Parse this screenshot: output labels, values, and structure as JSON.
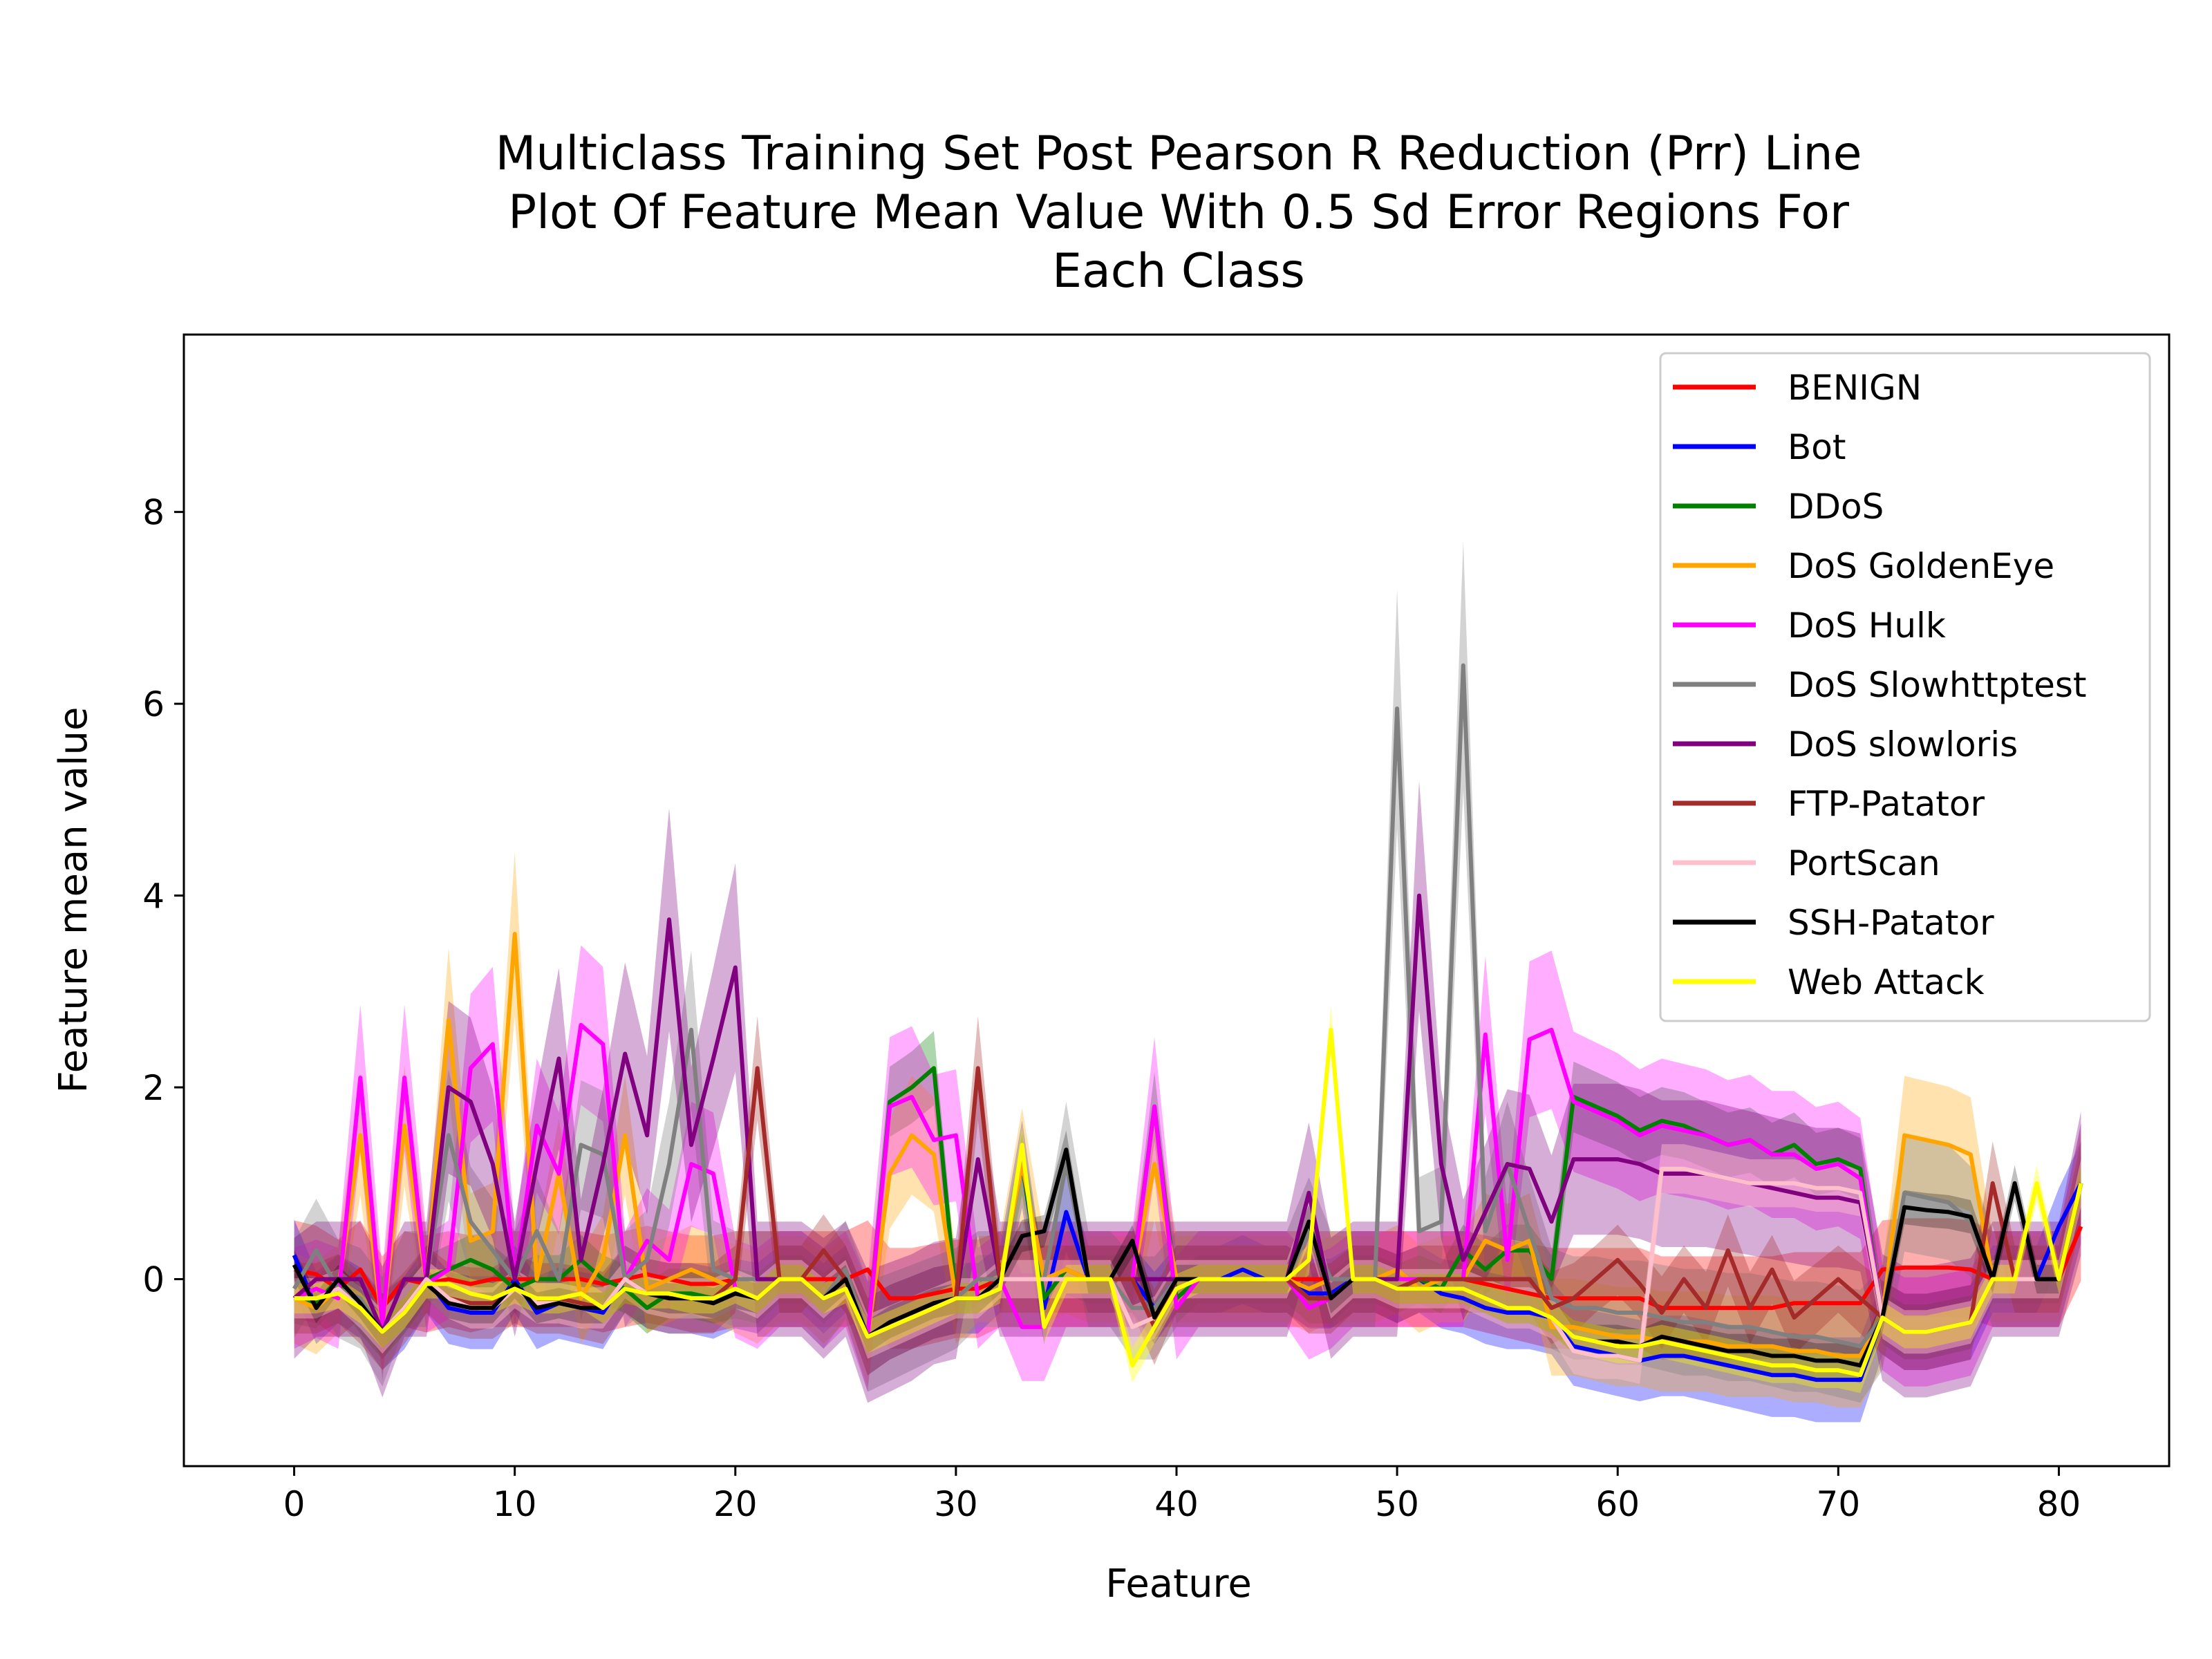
{
  "chart_data": {
    "type": "line",
    "title_lines": [
      "Multiclass Training Set Post Pearson R Reduction (Prr) Line",
      "Plot Of Feature Mean Value With 0.5 Sd Error Regions For",
      "Each Class"
    ],
    "xlabel": "Feature",
    "ylabel": "Feature mean value",
    "xlim": [
      -5,
      85
    ],
    "ylim": [
      -1.95,
      9.85
    ],
    "xticks": [
      0,
      10,
      20,
      30,
      40,
      50,
      60,
      70,
      80
    ],
    "yticks": [
      0,
      2,
      4,
      6,
      8
    ],
    "legend_position": "upper right",
    "grid": false,
    "x": [
      0,
      1,
      2,
      3,
      4,
      5,
      6,
      7,
      8,
      9,
      10,
      11,
      12,
      13,
      14,
      15,
      16,
      17,
      18,
      19,
      20,
      21,
      22,
      23,
      24,
      25,
      26,
      27,
      28,
      29,
      30,
      31,
      32,
      33,
      34,
      35,
      36,
      37,
      38,
      39,
      40,
      41,
      42,
      43,
      44,
      45,
      46,
      47,
      48,
      49,
      50,
      51,
      52,
      53,
      54,
      55,
      56,
      57,
      58,
      59,
      60,
      61,
      62,
      63,
      64,
      65,
      66,
      67,
      68,
      69,
      70,
      71,
      72,
      73,
      74,
      75,
      76,
      77,
      78,
      79,
      80,
      81
    ],
    "series": [
      {
        "name": "BENIGN",
        "color": "#ff0000",
        "band_color": "#ff0000",
        "band_opacity": 0.32,
        "values": [
          0.1,
          0.05,
          -0.1,
          0.1,
          -0.3,
          0.0,
          -0.05,
          0.0,
          -0.05,
          0.0,
          0.0,
          0.0,
          0.0,
          0.0,
          -0.05,
          0.0,
          0.05,
          0.0,
          -0.05,
          -0.05,
          0.0,
          0.0,
          0.0,
          0.0,
          0.0,
          0.0,
          0.1,
          -0.2,
          -0.2,
          -0.15,
          -0.1,
          -0.1,
          0.0,
          0.0,
          0.0,
          0.0,
          0.0,
          0.0,
          0.0,
          0.0,
          0.0,
          0.0,
          0.0,
          0.0,
          0.0,
          0.0,
          0.0,
          0.0,
          0.0,
          0.0,
          0.0,
          0.0,
          0.0,
          0.0,
          -0.05,
          -0.1,
          -0.15,
          -0.2,
          -0.2,
          -0.2,
          -0.2,
          -0.2,
          -0.3,
          -0.3,
          -0.3,
          -0.3,
          -0.3,
          -0.3,
          -0.25,
          -0.25,
          -0.25,
          -0.25,
          0.1,
          0.12,
          0.12,
          0.12,
          0.1,
          0.0,
          0.0,
          0.0,
          0.0,
          0.55
        ],
        "spread": 0.5
      },
      {
        "name": "Bot",
        "color": "#0000ff",
        "band_color": "#0000ff",
        "band_opacity": 0.32,
        "values": [
          0.25,
          -0.3,
          -0.1,
          -0.25,
          -0.55,
          -0.35,
          0.0,
          -0.3,
          -0.35,
          -0.35,
          0.0,
          -0.35,
          -0.25,
          -0.3,
          -0.35,
          0.0,
          -0.15,
          -0.2,
          -0.2,
          -0.25,
          -0.15,
          -0.2,
          0.0,
          0.0,
          -0.2,
          0.0,
          -0.6,
          -0.45,
          -0.35,
          -0.25,
          -0.2,
          -0.2,
          0.0,
          1.2,
          -0.3,
          0.7,
          0.0,
          0.0,
          0.0,
          -0.3,
          0.0,
          0.0,
          0.0,
          0.1,
          0.0,
          0.0,
          -0.15,
          -0.15,
          0.0,
          0.0,
          -0.1,
          0.0,
          -0.15,
          -0.2,
          -0.3,
          -0.35,
          -0.35,
          -0.4,
          -0.7,
          -0.75,
          -0.8,
          -0.85,
          -0.8,
          -0.8,
          -0.85,
          -0.9,
          -0.95,
          -1.0,
          -1.0,
          -1.05,
          -1.05,
          -1.05,
          -0.4,
          -0.55,
          -0.55,
          -0.5,
          -0.45,
          0.0,
          0.0,
          0.0,
          0.55,
          1.0
        ],
        "spread": 0.35
      },
      {
        "name": "DDoS",
        "color": "#008000",
        "band_color": "#008000",
        "band_opacity": 0.32,
        "values": [
          -0.2,
          -0.25,
          0.0,
          -0.3,
          -0.55,
          -0.3,
          0.0,
          0.1,
          0.2,
          0.1,
          -0.1,
          0.0,
          0.0,
          0.2,
          0.0,
          -0.1,
          -0.3,
          -0.15,
          -0.15,
          -0.2,
          -0.15,
          -0.2,
          0.0,
          0.0,
          -0.2,
          0.0,
          -0.6,
          1.85,
          2.0,
          2.2,
          -0.2,
          0.0,
          0.0,
          1.2,
          -0.2,
          0.1,
          0.0,
          0.0,
          0.0,
          1.8,
          -0.2,
          0.0,
          0.0,
          0.0,
          0.0,
          0.0,
          -0.2,
          -0.2,
          0.0,
          0.0,
          -0.1,
          0.0,
          -0.1,
          0.3,
          0.1,
          0.3,
          0.3,
          0.0,
          1.9,
          1.8,
          1.7,
          1.55,
          1.65,
          1.6,
          1.5,
          1.4,
          1.45,
          1.3,
          1.4,
          1.2,
          1.25,
          1.15,
          -0.4,
          -0.55,
          -0.55,
          -0.5,
          -0.45,
          0.0,
          0.0,
          0.0,
          0.0,
          1.0
        ],
        "spread": 0.25
      },
      {
        "name": "DoS GoldenEye",
        "color": "#ffa500",
        "band_color": "#ffa500",
        "band_opacity": 0.32,
        "values": [
          -0.2,
          -0.3,
          -0.1,
          1.5,
          -0.5,
          1.6,
          -0.05,
          2.7,
          0.4,
          0.5,
          3.6,
          0.0,
          1.1,
          -0.2,
          0.2,
          1.5,
          -0.1,
          0.0,
          0.1,
          0.0,
          -0.1,
          -0.2,
          0.0,
          0.0,
          -0.2,
          0.0,
          -0.6,
          1.1,
          1.5,
          1.3,
          -0.2,
          0.0,
          0.0,
          1.2,
          0.0,
          0.1,
          0.0,
          0.0,
          0.0,
          1.2,
          0.0,
          0.0,
          0.0,
          0.0,
          0.0,
          0.0,
          -0.1,
          0.0,
          0.0,
          0.0,
          0.1,
          -0.1,
          0.0,
          0.0,
          0.4,
          0.3,
          0.4,
          -0.5,
          -0.5,
          -0.55,
          -0.6,
          -0.6,
          -0.65,
          -0.65,
          -0.65,
          -0.7,
          -0.7,
          -0.7,
          -0.75,
          -0.75,
          -0.8,
          -0.8,
          -0.4,
          1.5,
          1.45,
          1.4,
          1.3,
          0.0,
          0.0,
          0.0,
          0.0,
          1.0
        ],
        "spread": 0.45
      },
      {
        "name": "DoS Hulk",
        "color": "#ff00ff",
        "band_color": "#ff00ff",
        "band_opacity": 0.32,
        "values": [
          -0.2,
          -0.1,
          -0.2,
          2.1,
          -0.5,
          2.1,
          -0.05,
          0.1,
          2.2,
          2.45,
          0.0,
          1.6,
          1.1,
          2.65,
          2.45,
          0.0,
          0.4,
          0.2,
          1.2,
          1.1,
          -0.1,
          -0.2,
          0.0,
          0.0,
          -0.2,
          0.0,
          -0.6,
          1.8,
          1.9,
          1.45,
          1.5,
          -0.2,
          0.0,
          -0.5,
          -0.5,
          0.0,
          0.0,
          0.0,
          0.0,
          1.8,
          -0.3,
          0.0,
          0.0,
          0.0,
          0.0,
          0.0,
          -0.3,
          -0.2,
          0.0,
          0.0,
          0.0,
          0.0,
          0.0,
          0.0,
          2.55,
          0.2,
          2.5,
          2.6,
          1.85,
          1.75,
          1.65,
          1.5,
          1.6,
          1.55,
          1.5,
          1.4,
          1.45,
          1.3,
          1.3,
          1.15,
          1.2,
          1.05,
          -0.4,
          -0.55,
          -0.55,
          -0.5,
          -0.45,
          0.0,
          0.0,
          0.0,
          0.0,
          1.0
        ],
        "spread": 0.5
      },
      {
        "name": "DoS Slowhttptest",
        "color": "#808080",
        "band_color": "#808080",
        "band_opacity": 0.35,
        "values": [
          -0.1,
          0.3,
          -0.1,
          -0.2,
          -0.55,
          0.0,
          0.0,
          1.5,
          0.6,
          0.3,
          0.0,
          0.5,
          0.0,
          1.4,
          1.3,
          0.0,
          0.2,
          1.2,
          2.6,
          0.1,
          0.0,
          0.0,
          0.0,
          0.0,
          -0.2,
          0.1,
          -0.6,
          -0.5,
          -0.4,
          -0.3,
          -0.2,
          0.0,
          0.0,
          0.0,
          0.0,
          1.2,
          0.0,
          0.0,
          -0.3,
          -0.3,
          0.0,
          0.0,
          0.0,
          0.0,
          0.0,
          0.0,
          0.5,
          0.0,
          0.0,
          0.0,
          5.95,
          0.5,
          0.6,
          6.4,
          0.5,
          1.2,
          0.5,
          -0.2,
          -0.3,
          -0.3,
          -0.35,
          -0.35,
          -0.4,
          -0.45,
          -0.45,
          -0.5,
          -0.5,
          -0.55,
          -0.6,
          -0.6,
          -0.65,
          -0.7,
          -0.4,
          0.9,
          0.85,
          0.8,
          0.6,
          0.0,
          0.0,
          0.0,
          0.0,
          1.0
        ],
        "spread": 0.5
      },
      {
        "name": "DoS slowloris",
        "color": "#800080",
        "band_color": "#800080",
        "band_opacity": 0.32,
        "values": [
          -0.2,
          0.0,
          0.0,
          0.0,
          -0.55,
          0.0,
          0.0,
          2.0,
          1.85,
          1.2,
          0.0,
          1.2,
          2.3,
          0.2,
          1.2,
          2.35,
          1.5,
          3.75,
          1.4,
          2.3,
          3.25,
          0.0,
          0.0,
          0.0,
          -0.2,
          0.0,
          -0.6,
          -0.5,
          -0.4,
          -0.25,
          -0.2,
          1.25,
          0.0,
          0.0,
          0.0,
          0.0,
          0.0,
          0.0,
          0.0,
          0.0,
          0.0,
          0.0,
          0.0,
          0.0,
          0.0,
          0.0,
          0.9,
          -0.2,
          0.0,
          0.0,
          0.0,
          4.0,
          1.2,
          0.2,
          0.7,
          1.2,
          1.15,
          0.6,
          1.25,
          1.25,
          1.25,
          1.2,
          1.1,
          1.1,
          1.1,
          1.05,
          1.0,
          0.95,
          0.9,
          0.85,
          0.85,
          0.8,
          -0.4,
          -0.55,
          -0.55,
          -0.5,
          -0.45,
          0.0,
          0.0,
          0.0,
          0.0,
          1.0
        ],
        "spread": 0.6
      },
      {
        "name": "FTP-Patator",
        "color": "#a52a2a",
        "band_color": "#a52a2a",
        "band_opacity": 0.32,
        "values": [
          -0.2,
          -0.2,
          -0.1,
          -0.3,
          -0.55,
          -0.3,
          0.0,
          -0.2,
          -0.25,
          -0.25,
          -0.1,
          -0.2,
          -0.2,
          -0.25,
          -0.3,
          0.0,
          -0.15,
          -0.2,
          -0.2,
          -0.2,
          0.0,
          2.2,
          0.0,
          0.0,
          0.3,
          0.0,
          -0.6,
          -0.45,
          -0.35,
          -0.25,
          -0.2,
          2.2,
          0.0,
          0.0,
          0.0,
          0.0,
          0.0,
          0.0,
          0.0,
          -0.5,
          0.0,
          0.0,
          0.0,
          0.0,
          0.0,
          0.0,
          -0.2,
          -0.2,
          0.0,
          0.0,
          -0.1,
          0.0,
          0.0,
          0.0,
          0.0,
          0.0,
          0.0,
          -0.3,
          -0.2,
          0.0,
          0.2,
          -0.05,
          -0.35,
          0.0,
          -0.3,
          0.3,
          -0.3,
          0.1,
          -0.4,
          -0.2,
          0.0,
          -0.2,
          -0.4,
          -0.55,
          -0.55,
          -0.5,
          -0.45,
          1.0,
          0.0,
          0.0,
          0.0,
          1.0
        ],
        "spread": 0.35
      },
      {
        "name": "PortScan",
        "color": "#ffc0cb",
        "band_color": "#ffc0cb",
        "band_opacity": 0.45,
        "values": [
          -0.2,
          -0.2,
          -0.1,
          -0.3,
          -0.55,
          -0.3,
          0.0,
          -0.2,
          -0.3,
          -0.3,
          -0.1,
          -0.25,
          -0.25,
          -0.3,
          -0.3,
          0.0,
          -0.15,
          -0.2,
          -0.2,
          -0.2,
          -0.1,
          -0.2,
          0.0,
          0.0,
          -0.2,
          0.0,
          -0.6,
          -0.5,
          -0.4,
          -0.3,
          -0.2,
          -0.2,
          0.0,
          0.0,
          0.0,
          0.0,
          0.0,
          0.0,
          -0.5,
          -0.4,
          0.0,
          0.0,
          0.0,
          0.0,
          0.0,
          0.0,
          0.6,
          -0.2,
          0.0,
          0.0,
          -0.1,
          -0.1,
          -0.1,
          -0.1,
          -0.2,
          -0.3,
          -0.3,
          -0.4,
          -0.75,
          -0.8,
          -0.8,
          -0.85,
          1.15,
          1.15,
          1.1,
          1.05,
          1.0,
          1.0,
          1.0,
          0.95,
          0.95,
          0.9,
          -0.4,
          -0.55,
          -0.55,
          -0.5,
          -0.45,
          0.0,
          0.0,
          0.0,
          0.0,
          1.0
        ],
        "spread": 0.2
      },
      {
        "name": "SSH-Patator",
        "color": "#000000",
        "band_color": "#000000",
        "band_opacity": 0.25,
        "values": [
          0.15,
          -0.3,
          0.0,
          -0.25,
          -0.55,
          -0.35,
          -0.05,
          -0.25,
          -0.3,
          -0.3,
          -0.05,
          -0.3,
          -0.25,
          -0.3,
          -0.3,
          -0.1,
          -0.15,
          -0.2,
          -0.2,
          -0.25,
          -0.15,
          -0.2,
          0.0,
          0.0,
          -0.2,
          0.0,
          -0.6,
          -0.45,
          -0.35,
          -0.25,
          -0.2,
          -0.2,
          0.0,
          0.45,
          0.5,
          1.35,
          0.0,
          0.0,
          0.4,
          -0.4,
          0.0,
          0.0,
          0.0,
          0.0,
          0.0,
          0.0,
          0.6,
          -0.2,
          0.0,
          0.0,
          -0.1,
          -0.1,
          -0.1,
          -0.1,
          -0.2,
          -0.3,
          -0.3,
          -0.4,
          -0.6,
          -0.65,
          -0.65,
          -0.7,
          -0.6,
          -0.65,
          -0.7,
          -0.75,
          -0.75,
          -0.8,
          -0.8,
          -0.85,
          -0.85,
          -0.9,
          -0.4,
          0.75,
          0.72,
          0.7,
          0.65,
          0.0,
          1.0,
          0.0,
          0.0,
          1.0
        ],
        "spread": 0.15
      },
      {
        "name": "Web Attack",
        "color": "#ffff00",
        "band_color": "#ffff00",
        "band_opacity": 0.35,
        "values": [
          -0.2,
          -0.2,
          -0.15,
          -0.3,
          -0.55,
          -0.35,
          -0.05,
          -0.05,
          -0.15,
          -0.2,
          -0.1,
          -0.2,
          -0.2,
          -0.15,
          -0.3,
          -0.1,
          -0.15,
          -0.15,
          -0.2,
          -0.2,
          -0.1,
          -0.2,
          0.0,
          0.0,
          -0.2,
          -0.1,
          -0.6,
          -0.5,
          -0.4,
          -0.3,
          -0.2,
          -0.2,
          -0.1,
          1.4,
          -0.5,
          0.0,
          0.0,
          0.0,
          -0.9,
          -0.5,
          -0.1,
          0.0,
          0.0,
          0.0,
          0.0,
          0.0,
          0.2,
          2.6,
          0.0,
          0.0,
          -0.1,
          -0.1,
          -0.1,
          -0.1,
          -0.2,
          -0.3,
          -0.3,
          -0.4,
          -0.6,
          -0.65,
          -0.7,
          -0.7,
          -0.65,
          -0.7,
          -0.75,
          -0.8,
          -0.85,
          -0.9,
          -0.9,
          -0.95,
          -0.95,
          -1.0,
          -0.4,
          -0.55,
          -0.55,
          -0.5,
          -0.45,
          0.0,
          0.0,
          1.0,
          0.0,
          1.0
        ],
        "spread": 0.15
      }
    ]
  }
}
